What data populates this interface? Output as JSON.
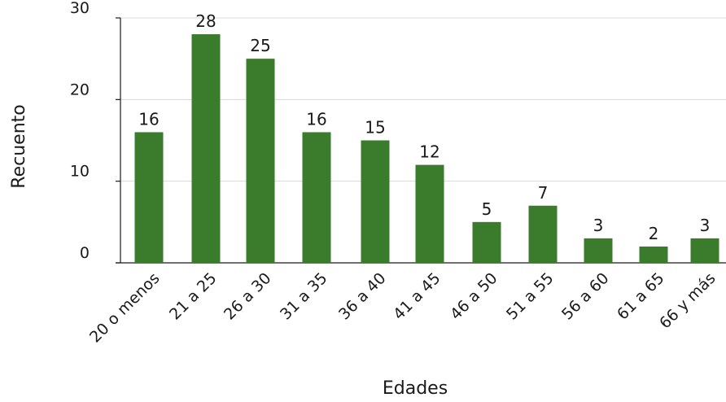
{
  "chart_data": {
    "type": "bar",
    "title": "",
    "xlabel": "Edades",
    "ylabel": "Recuento",
    "categories": [
      "20 o menos",
      "21 a 25",
      "26 a 30",
      "31 a 35",
      "36 a 40",
      "41 a 45",
      "46 a 50",
      "51 a 55",
      "56 a 60",
      "61 a 65",
      "66 y más"
    ],
    "values": [
      16,
      28,
      25,
      16,
      15,
      12,
      5,
      7,
      3,
      2,
      3
    ],
    "yticks": [
      0,
      10,
      20,
      30
    ],
    "ylim": [
      0,
      30
    ],
    "grid": true,
    "legend": "none",
    "bar_color": "#3a7b2c"
  }
}
